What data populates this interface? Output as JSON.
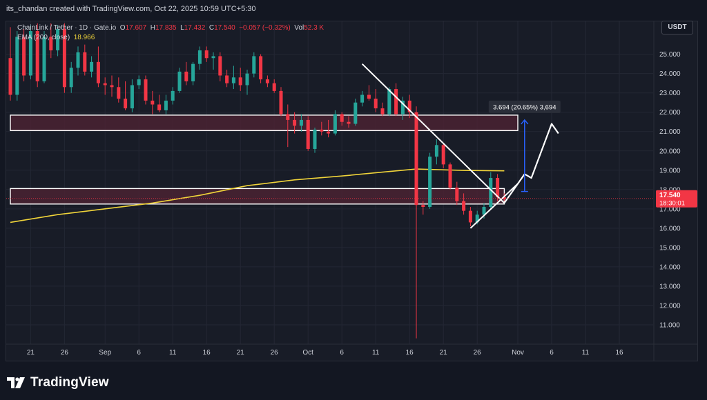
{
  "attribution": "its_chandan created with TradingView.com, Oct 22, 2025 10:59 UTC+5:30",
  "legend": {
    "symbol": "ChainLink / Tether · 1D · Gate.io",
    "open_label": "O",
    "open": "17.607",
    "high_label": "H",
    "high": "17.835",
    "low_label": "L",
    "low": "17.432",
    "close_label": "C",
    "close": "17.540",
    "change": "−0.057 (−0.32%)",
    "vol_label": "Vol",
    "vol": "52.3 K",
    "ema_label": "EMA (200, close)",
    "ema_value": "18.966"
  },
  "currency": "USDT",
  "brand": "TradingView",
  "colors": {
    "up": "#26a69a",
    "down": "#f23645",
    "ema": "#f0d43a",
    "zone_fill": "#4a2233",
    "zone_border": "#ffffff",
    "measure": "#2962ff",
    "price_tag": "#f23645"
  },
  "chart_data": {
    "type": "candlestick",
    "symbol": "ChainLink / Tether",
    "timeframe": "1D",
    "exchange": "Gate.io",
    "y_axis": {
      "ticks": [
        11.0,
        12.0,
        13.0,
        14.0,
        15.0,
        16.0,
        17.0,
        18.0,
        19.0,
        20.0,
        21.0,
        22.0,
        23.0,
        24.0,
        25.0
      ],
      "tick_labels": [
        "11.000",
        "12.000",
        "13.000",
        "14.000",
        "15.000",
        "16.000",
        "17.000",
        "18.000",
        "19.000",
        "20.000",
        "21.000",
        "22.000",
        "23.000",
        "24.000",
        "25.000"
      ],
      "ylim": [
        10.0,
        26.7
      ]
    },
    "x_axis": {
      "start_date": "2025-08-18",
      "end_date": "2025-11-21",
      "ticks": [
        {
          "date": "2025-08-21",
          "label": "21"
        },
        {
          "date": "2025-08-26",
          "label": "26"
        },
        {
          "date": "2025-09-01",
          "label": "Sep"
        },
        {
          "date": "2025-09-06",
          "label": "6"
        },
        {
          "date": "2025-09-11",
          "label": "11"
        },
        {
          "date": "2025-09-16",
          "label": "16"
        },
        {
          "date": "2025-09-21",
          "label": "21"
        },
        {
          "date": "2025-09-26",
          "label": "26"
        },
        {
          "date": "2025-10-01",
          "label": "Oct"
        },
        {
          "date": "2025-10-06",
          "label": "6"
        },
        {
          "date": "2025-10-11",
          "label": "11"
        },
        {
          "date": "2025-10-16",
          "label": "16"
        },
        {
          "date": "2025-10-21",
          "label": "21"
        },
        {
          "date": "2025-10-26",
          "label": "26"
        },
        {
          "date": "2025-11-01",
          "label": "Nov"
        },
        {
          "date": "2025-11-06",
          "label": "6"
        },
        {
          "date": "2025-11-11",
          "label": "11"
        },
        {
          "date": "2025-11-16",
          "label": "16"
        }
      ]
    },
    "candles": [
      {
        "date": "2025-08-18",
        "o": 24.8,
        "h": 26.4,
        "l": 22.6,
        "c": 22.9
      },
      {
        "date": "2025-08-19",
        "o": 22.9,
        "h": 26.2,
        "l": 22.6,
        "c": 25.9
      },
      {
        "date": "2025-08-20",
        "o": 25.9,
        "h": 26.3,
        "l": 23.6,
        "c": 23.9
      },
      {
        "date": "2025-08-21",
        "o": 23.9,
        "h": 26.5,
        "l": 23.7,
        "c": 26.2
      },
      {
        "date": "2025-08-22",
        "o": 26.2,
        "h": 26.6,
        "l": 23.3,
        "c": 23.6
      },
      {
        "date": "2025-08-23",
        "o": 23.6,
        "h": 26.2,
        "l": 23.5,
        "c": 25.9
      },
      {
        "date": "2025-08-24",
        "o": 25.9,
        "h": 26.6,
        "l": 24.8,
        "c": 25.2
      },
      {
        "date": "2025-08-25",
        "o": 25.2,
        "h": 26.5,
        "l": 24.9,
        "c": 26.3
      },
      {
        "date": "2025-08-26",
        "o": 26.3,
        "h": 26.6,
        "l": 23.0,
        "c": 23.3
      },
      {
        "date": "2025-08-27",
        "o": 23.3,
        "h": 24.6,
        "l": 23.0,
        "c": 24.3
      },
      {
        "date": "2025-08-28",
        "o": 24.3,
        "h": 25.4,
        "l": 23.9,
        "c": 25.1
      },
      {
        "date": "2025-08-29",
        "o": 25.1,
        "h": 25.5,
        "l": 23.9,
        "c": 24.1
      },
      {
        "date": "2025-08-30",
        "o": 24.1,
        "h": 24.9,
        "l": 23.8,
        "c": 24.6
      },
      {
        "date": "2025-08-31",
        "o": 24.6,
        "h": 25.4,
        "l": 23.3,
        "c": 23.5
      },
      {
        "date": "2025-09-01",
        "o": 23.5,
        "h": 23.8,
        "l": 22.9,
        "c": 23.4
      },
      {
        "date": "2025-09-02",
        "o": 23.4,
        "h": 23.9,
        "l": 22.8,
        "c": 23.3
      },
      {
        "date": "2025-09-03",
        "o": 23.3,
        "h": 23.8,
        "l": 22.5,
        "c": 22.7
      },
      {
        "date": "2025-09-04",
        "o": 22.7,
        "h": 23.6,
        "l": 22.1,
        "c": 22.2
      },
      {
        "date": "2025-09-05",
        "o": 22.2,
        "h": 23.7,
        "l": 22.0,
        "c": 23.4
      },
      {
        "date": "2025-09-06",
        "o": 23.4,
        "h": 23.9,
        "l": 23.2,
        "c": 23.7
      },
      {
        "date": "2025-09-07",
        "o": 23.7,
        "h": 23.9,
        "l": 22.4,
        "c": 22.6
      },
      {
        "date": "2025-09-08",
        "o": 22.6,
        "h": 23.1,
        "l": 21.9,
        "c": 22.4
      },
      {
        "date": "2025-09-09",
        "o": 22.4,
        "h": 22.9,
        "l": 22.0,
        "c": 22.1
      },
      {
        "date": "2025-09-10",
        "o": 22.1,
        "h": 22.9,
        "l": 21.9,
        "c": 22.6
      },
      {
        "date": "2025-09-11",
        "o": 22.6,
        "h": 23.3,
        "l": 22.4,
        "c": 23.1
      },
      {
        "date": "2025-09-12",
        "o": 23.1,
        "h": 24.3,
        "l": 23.0,
        "c": 24.1
      },
      {
        "date": "2025-09-13",
        "o": 24.1,
        "h": 24.6,
        "l": 23.4,
        "c": 23.6
      },
      {
        "date": "2025-09-14",
        "o": 23.6,
        "h": 24.6,
        "l": 23.4,
        "c": 24.5
      },
      {
        "date": "2025-09-15",
        "o": 24.5,
        "h": 25.4,
        "l": 24.2,
        "c": 25.2
      },
      {
        "date": "2025-09-16",
        "o": 25.2,
        "h": 25.4,
        "l": 24.6,
        "c": 24.8
      },
      {
        "date": "2025-09-17",
        "o": 24.8,
        "h": 25.1,
        "l": 24.2,
        "c": 24.9
      },
      {
        "date": "2025-09-18",
        "o": 24.9,
        "h": 25.1,
        "l": 23.6,
        "c": 23.9
      },
      {
        "date": "2025-09-19",
        "o": 23.9,
        "h": 24.2,
        "l": 23.3,
        "c": 23.5
      },
      {
        "date": "2025-09-20",
        "o": 23.5,
        "h": 24.4,
        "l": 23.2,
        "c": 23.8
      },
      {
        "date": "2025-09-21",
        "o": 23.8,
        "h": 24.3,
        "l": 23.1,
        "c": 23.4
      },
      {
        "date": "2025-09-22",
        "o": 23.4,
        "h": 24.2,
        "l": 22.9,
        "c": 24.0
      },
      {
        "date": "2025-09-23",
        "o": 24.0,
        "h": 25.1,
        "l": 23.8,
        "c": 24.9
      },
      {
        "date": "2025-09-24",
        "o": 24.9,
        "h": 25.0,
        "l": 23.5,
        "c": 23.7
      },
      {
        "date": "2025-09-25",
        "o": 23.7,
        "h": 23.9,
        "l": 23.3,
        "c": 23.5
      },
      {
        "date": "2025-09-26",
        "o": 23.5,
        "h": 23.7,
        "l": 23.0,
        "c": 23.1
      },
      {
        "date": "2025-09-27",
        "o": 23.1,
        "h": 23.3,
        "l": 21.8,
        "c": 21.9
      },
      {
        "date": "2025-09-28",
        "o": 21.9,
        "h": 22.4,
        "l": 20.2,
        "c": 21.6
      },
      {
        "date": "2025-09-29",
        "o": 21.6,
        "h": 22.0,
        "l": 20.9,
        "c": 21.3
      },
      {
        "date": "2025-09-30",
        "o": 21.3,
        "h": 21.9,
        "l": 21.0,
        "c": 21.6
      },
      {
        "date": "2025-10-01",
        "o": 21.6,
        "h": 21.8,
        "l": 20.0,
        "c": 20.1
      },
      {
        "date": "2025-10-02",
        "o": 20.1,
        "h": 21.2,
        "l": 19.9,
        "c": 21.1
      },
      {
        "date": "2025-10-03",
        "o": 21.1,
        "h": 21.5,
        "l": 20.8,
        "c": 21.0
      },
      {
        "date": "2025-10-04",
        "o": 21.0,
        "h": 21.6,
        "l": 20.7,
        "c": 20.9
      },
      {
        "date": "2025-10-05",
        "o": 20.9,
        "h": 22.1,
        "l": 20.8,
        "c": 21.9
      },
      {
        "date": "2025-10-06",
        "o": 21.9,
        "h": 22.0,
        "l": 21.3,
        "c": 21.5
      },
      {
        "date": "2025-10-07",
        "o": 21.5,
        "h": 21.8,
        "l": 21.2,
        "c": 21.4
      },
      {
        "date": "2025-10-08",
        "o": 21.4,
        "h": 22.7,
        "l": 21.3,
        "c": 22.5
      },
      {
        "date": "2025-10-09",
        "o": 22.5,
        "h": 23.1,
        "l": 22.3,
        "c": 22.9
      },
      {
        "date": "2025-10-10",
        "o": 22.9,
        "h": 23.4,
        "l": 22.6,
        "c": 22.7
      },
      {
        "date": "2025-10-11",
        "o": 22.7,
        "h": 23.2,
        "l": 22.0,
        "c": 22.2
      },
      {
        "date": "2025-10-12",
        "o": 22.2,
        "h": 22.5,
        "l": 21.8,
        "c": 21.9
      },
      {
        "date": "2025-10-13",
        "o": 21.9,
        "h": 23.3,
        "l": 21.8,
        "c": 23.2
      },
      {
        "date": "2025-10-14",
        "o": 23.2,
        "h": 23.5,
        "l": 21.8,
        "c": 21.9
      },
      {
        "date": "2025-10-15",
        "o": 21.9,
        "h": 22.8,
        "l": 21.6,
        "c": 22.6
      },
      {
        "date": "2025-10-16",
        "o": 22.6,
        "h": 22.9,
        "l": 21.7,
        "c": 22.0
      },
      {
        "date": "2025-10-17",
        "o": 22.0,
        "h": 22.3,
        "l": 10.3,
        "c": 17.2
      },
      {
        "date": "2025-10-18",
        "o": 17.2,
        "h": 17.4,
        "l": 16.7,
        "c": 17.1
      },
      {
        "date": "2025-10-19",
        "o": 17.1,
        "h": 19.9,
        "l": 17.0,
        "c": 19.7
      },
      {
        "date": "2025-10-20",
        "o": 19.7,
        "h": 20.6,
        "l": 19.3,
        "c": 20.3
      },
      {
        "date": "2025-10-21",
        "o": 20.3,
        "h": 20.4,
        "l": 19.1,
        "c": 19.3
      },
      {
        "date": "2025-10-22",
        "o": 19.3,
        "h": 19.4,
        "l": 18.0,
        "c": 18.1
      },
      {
        "date": "2025-10-23",
        "o": 18.1,
        "h": 18.4,
        "l": 17.2,
        "c": 17.4
      },
      {
        "date": "2025-10-24",
        "o": 17.4,
        "h": 17.8,
        "l": 16.7,
        "c": 16.9
      },
      {
        "date": "2025-10-25",
        "o": 16.9,
        "h": 17.1,
        "l": 16.1,
        "c": 16.3
      },
      {
        "date": "2025-10-26",
        "o": 16.3,
        "h": 16.9,
        "l": 16.2,
        "c": 16.7
      },
      {
        "date": "2025-10-27",
        "o": 16.7,
        "h": 17.3,
        "l": 16.5,
        "c": 17.1
      },
      {
        "date": "2025-10-28",
        "o": 17.1,
        "h": 18.9,
        "l": 17.0,
        "c": 18.6
      },
      {
        "date": "2025-10-29",
        "o": 18.6,
        "h": 18.8,
        "l": 17.4,
        "c": 17.6
      },
      {
        "date": "2025-10-30",
        "o": 17.6,
        "h": 17.8,
        "l": 17.4,
        "c": 17.5
      }
    ],
    "ema": {
      "name": "EMA (200, close)",
      "points": [
        {
          "date": "2025-08-18",
          "v": 16.3
        },
        {
          "date": "2025-08-25",
          "v": 16.7
        },
        {
          "date": "2025-09-01",
          "v": 17.0
        },
        {
          "date": "2025-09-08",
          "v": 17.3
        },
        {
          "date": "2025-09-15",
          "v": 17.7
        },
        {
          "date": "2025-09-22",
          "v": 18.2
        },
        {
          "date": "2025-09-29",
          "v": 18.5
        },
        {
          "date": "2025-10-06",
          "v": 18.7
        },
        {
          "date": "2025-10-12",
          "v": 18.9
        },
        {
          "date": "2025-10-17",
          "v": 19.06
        },
        {
          "date": "2025-10-24",
          "v": 18.99
        },
        {
          "date": "2025-10-30",
          "v": 18.966
        }
      ]
    },
    "zones": [
      {
        "from_date": "2025-08-18",
        "to_date": "2025-11-01",
        "top": 21.85,
        "bottom": 21.05
      },
      {
        "from_date": "2025-08-18",
        "to_date": "2025-10-30",
        "top": 18.05,
        "bottom": 17.25
      }
    ],
    "trendlines": [
      {
        "from": {
          "date": "2025-10-09",
          "v": 24.5
        },
        "to": {
          "date": "2025-10-30",
          "v": 17.3
        }
      },
      {
        "from": {
          "date": "2025-10-25",
          "v": 16.0
        },
        "to": {
          "date": "2025-11-01",
          "v": 18.3
        }
      }
    ],
    "projection_path": [
      {
        "date": "2025-10-30",
        "v": 17.3
      },
      {
        "date": "2025-11-02",
        "v": 18.8
      },
      {
        "date": "2025-11-03",
        "v": 18.6
      },
      {
        "date": "2025-11-06",
        "v": 21.4
      },
      {
        "date": "2025-11-07",
        "v": 20.9
      }
    ],
    "measure": {
      "date": "2025-11-02",
      "from": 17.9,
      "to": 21.6,
      "label": "3.694 (20.65%) 3,694"
    },
    "current_price": {
      "value": 17.54,
      "label": "17.540",
      "countdown": "18:30:01"
    }
  }
}
